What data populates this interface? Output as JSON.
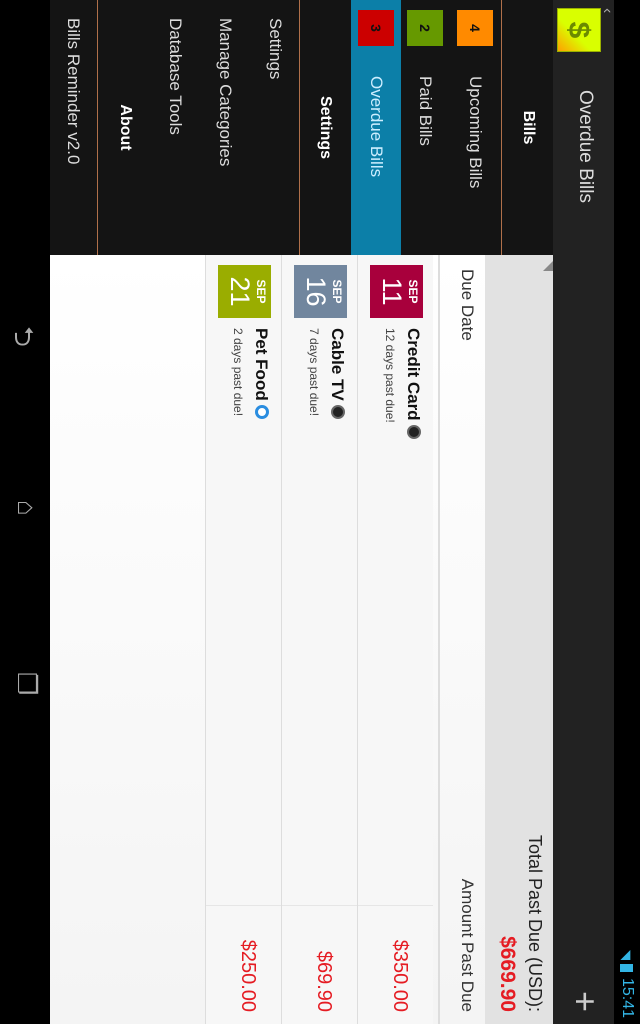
{
  "status_bar": {
    "time": "15:41",
    "icons": [
      "wifi-icon",
      "battery-icon"
    ]
  },
  "action_bar": {
    "title": "Overdue Bills",
    "app_icon": "dollar-icon",
    "add_icon": "plus-icon"
  },
  "drawer": {
    "sections": [
      {
        "header": "Bills",
        "items": [
          {
            "label": "Upcoming Bills",
            "count": "4",
            "color": "#ff8a00"
          },
          {
            "label": "Paid Bills",
            "count": "2",
            "color": "#669900"
          },
          {
            "label": "Overdue Bills",
            "count": "3",
            "color": "#cc0000",
            "selected": true
          }
        ]
      },
      {
        "header": "Settings",
        "items": [
          {
            "label": "Settings"
          },
          {
            "label": "Manage Categories"
          },
          {
            "label": "Database Tools"
          }
        ]
      },
      {
        "header": "About",
        "items": [
          {
            "label": "Bills Reminder v2.0"
          }
        ]
      }
    ]
  },
  "summary": {
    "total_label": "Total Past Due (USD):",
    "total_value": "$669.90"
  },
  "columns": {
    "due_date": "Due Date",
    "amount": "Amount Past Due"
  },
  "bills": [
    {
      "month": "SEP",
      "day": "11",
      "name": "Credit Card",
      "status": "12 days past due!",
      "amount": "$350.00",
      "date_color": "#a8003c",
      "category_icon": "tv-icon"
    },
    {
      "month": "SEP",
      "day": "16",
      "name": "Cable TV",
      "status": "7 days past due!",
      "amount": "$69.90",
      "date_color": "#71869e",
      "category_icon": "tv-icon"
    },
    {
      "month": "SEP",
      "day": "21",
      "name": "Pet Food",
      "status": "2 days past due!",
      "amount": "$250.00",
      "date_color": "#9aad00",
      "category_icon": "refresh-icon"
    }
  ],
  "nav_bar": {
    "icons": [
      "back-icon",
      "home-icon",
      "recents-icon"
    ]
  }
}
